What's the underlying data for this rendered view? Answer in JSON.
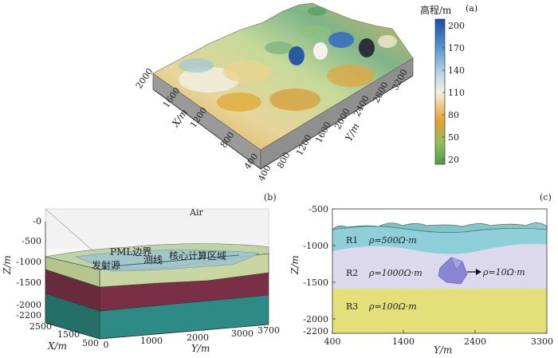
{
  "panel_a": {
    "label": "(a)",
    "colorbar": {
      "title": "高程/m",
      "ticks": [
        "200",
        "170",
        "140",
        "110",
        "80",
        "50",
        "20"
      ],
      "colors": [
        "#1f4ea8",
        "#4f8fce",
        "#b8d9e8",
        "#f4f0dc",
        "#e7a030",
        "#8cbf5f",
        "#4e9a4a"
      ]
    },
    "x_ticks": [
      "2000",
      "1600",
      "1200",
      "800",
      "400"
    ],
    "x_label": "X/m",
    "y_ticks": [
      "400",
      "800",
      "1200",
      "1600",
      "2000",
      "2400",
      "2800",
      "3200"
    ],
    "y_label": "Y/m"
  },
  "panel_b": {
    "label": "(b)",
    "air": "Air",
    "z_ticks": [
      "-0",
      "-500",
      "-1000",
      "-1500",
      "-2000",
      "-2200"
    ],
    "z_label": "Z/m",
    "x_ticks": [
      "2500",
      "1500",
      "500"
    ],
    "x_label": "X/m",
    "y_ticks": [
      "0",
      "1000",
      "2000",
      "3000",
      "3700"
    ],
    "y_label": "Y/m",
    "annotations": [
      "PML边界",
      "发射源",
      "测线",
      "核心计算区域"
    ],
    "colors": {
      "layer1": "#c9d6a2",
      "layer2": "#7a2f46",
      "layer3": "#2e8a84"
    }
  },
  "panel_c": {
    "label": "(c)",
    "z_ticks": [
      "-500",
      "-1000",
      "-1500",
      "-2000",
      "-2200"
    ],
    "z_label": "Z/m",
    "y_ticks": [
      "400",
      "1400",
      "2400",
      "3300"
    ],
    "y_label": "Y/m",
    "layers": [
      {
        "name": "R1",
        "rho": "ρ=500Ω·m",
        "color": "#8ecfd8"
      },
      {
        "name": "R2",
        "rho": "ρ=1000Ω·m",
        "color": "#dcd8ee"
      },
      {
        "name": "R3",
        "rho": "ρ=100Ω·m",
        "color": "#e3e07a"
      }
    ],
    "anomaly": "ρ=10Ω·m"
  }
}
